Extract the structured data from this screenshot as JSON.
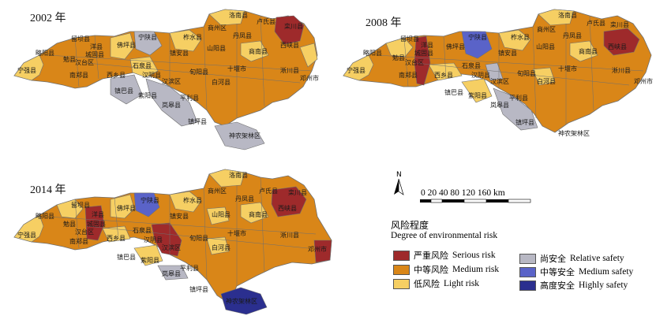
{
  "panels": [
    {
      "year": "2002 年",
      "id": "2002"
    },
    {
      "year": "2008 年",
      "id": "2008"
    },
    {
      "year": "2014 年",
      "id": "2014"
    }
  ],
  "colors": {
    "serious": "#9e2a2b",
    "medium": "#d98618",
    "light": "#f6cf63",
    "relative_safety": "#b8b8c4",
    "medium_safety": "#5a63c8",
    "high_safety": "#2b2f8f",
    "border": "#6f6f6f"
  },
  "map_2002": {
    "labels": [
      "洛南县",
      "商州区",
      "卢氏县",
      "栾川县",
      "丹凤县",
      "西峡县",
      "商南县",
      "淅川县",
      "邓州市",
      "略阳县",
      "留坝县",
      "佛坪县",
      "宁陕县",
      "柞水县",
      "山阳县",
      "镇安县",
      "勉县",
      "城固县",
      "洋县",
      "汉台区",
      "宁强县",
      "南郑县",
      "西乡县",
      "石泉县",
      "汉阴县",
      "汉滨区",
      "旬阳县",
      "白河县",
      "十堰市",
      "镇巴县",
      "紫阳县",
      "平利县",
      "岚皋县",
      "镇坪县",
      "神农架林区"
    ]
  },
  "map_2008": {
    "labels": [
      "洛南县",
      "商州区",
      "卢氏县",
      "栾川县",
      "丹凤县",
      "西峡县",
      "商南县",
      "淅川县",
      "邓州市",
      "略阳县",
      "留坝县",
      "佛坪县",
      "宁陕县",
      "柞水县",
      "山阳县",
      "镇安县",
      "勉县",
      "城固县",
      "洋县",
      "汉台区",
      "宁强县",
      "南郑县",
      "西乡县",
      "石泉县",
      "汉阴县",
      "汉滨区",
      "旬阳县",
      "白河县",
      "十堰市",
      "镇巴县",
      "紫阳县",
      "平利县",
      "岚皋县",
      "镇坪县",
      "神农架林区"
    ]
  },
  "map_2014": {
    "labels": [
      "洛南县",
      "商州区",
      "卢氏县",
      "栾川县",
      "丹凤县",
      "西峡县",
      "商南县",
      "淅川县",
      "邓州市",
      "略阳县",
      "留坝县",
      "佛坪县",
      "宁陕县",
      "柞水县",
      "山阳县",
      "镇安县",
      "勉县",
      "城固县",
      "洋县",
      "汉台区",
      "宁强县",
      "南郑县",
      "西乡县",
      "石泉县",
      "汉阴县",
      "汉滨区",
      "旬阳县",
      "白河县",
      "十堰市",
      "镇巴县",
      "紫阳县",
      "平利县",
      "岚皋县",
      "镇坪县",
      "神农架林区"
    ]
  },
  "legend": {
    "north": "N",
    "scale_text": "0 20 40    80   120   160  km",
    "title_zh": "风险程度",
    "title_en": "Degree of environmental risk",
    "items": [
      {
        "zh": "严重风险",
        "en": "Serious risk",
        "color": "#9e2a2b"
      },
      {
        "zh": "中等风险",
        "en": "Medium risk",
        "color": "#d98618"
      },
      {
        "zh": "低风险",
        "en": "Light risk",
        "color": "#f6cf63"
      },
      {
        "zh": "尚安全",
        "en": "Relative safety",
        "color": "#b8b8c4"
      },
      {
        "zh": "中等安全",
        "en": "Medium safety",
        "color": "#5a63c8"
      },
      {
        "zh": "高度安全",
        "en": "Highly safety",
        "color": "#2b2f8f"
      }
    ]
  }
}
